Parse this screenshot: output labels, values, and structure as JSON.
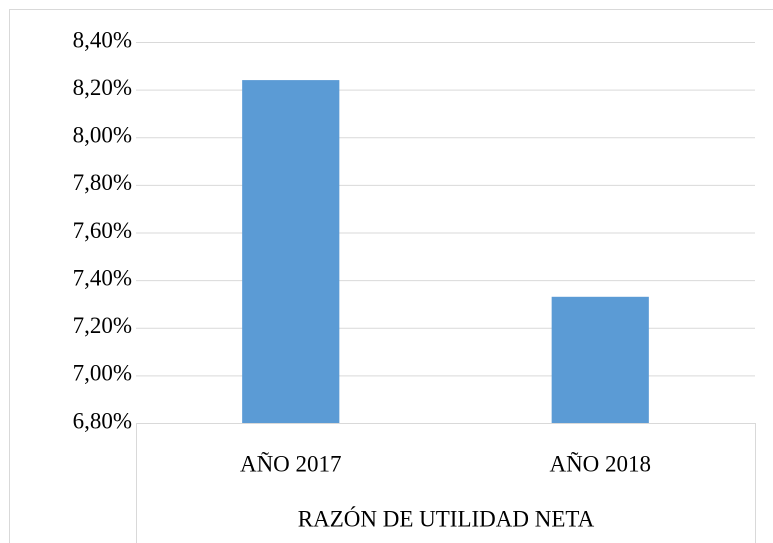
{
  "chart_data": {
    "type": "bar",
    "x_label": "RAZÓN DE UTILIDAD NETA",
    "categories": [
      "AÑO 2017",
      "AÑO 2018"
    ],
    "values": [
      8.24,
      7.33
    ],
    "color": "#5b9bd5",
    "ylim": [
      6.8,
      8.4
    ],
    "yticks": [
      {
        "value": 6.8,
        "label": "6,80%"
      },
      {
        "value": 7.0,
        "label": "7,00%"
      },
      {
        "value": 7.2,
        "label": "7,20%"
      },
      {
        "value": 7.4,
        "label": "7,40%"
      },
      {
        "value": 7.6,
        "label": "7,60%"
      },
      {
        "value": 7.8,
        "label": "7,80%"
      },
      {
        "value": 8.0,
        "label": "8,00%"
      },
      {
        "value": 8.2,
        "label": "8,20%"
      },
      {
        "value": 8.4,
        "label": "8,40%"
      }
    ],
    "grid": true
  }
}
